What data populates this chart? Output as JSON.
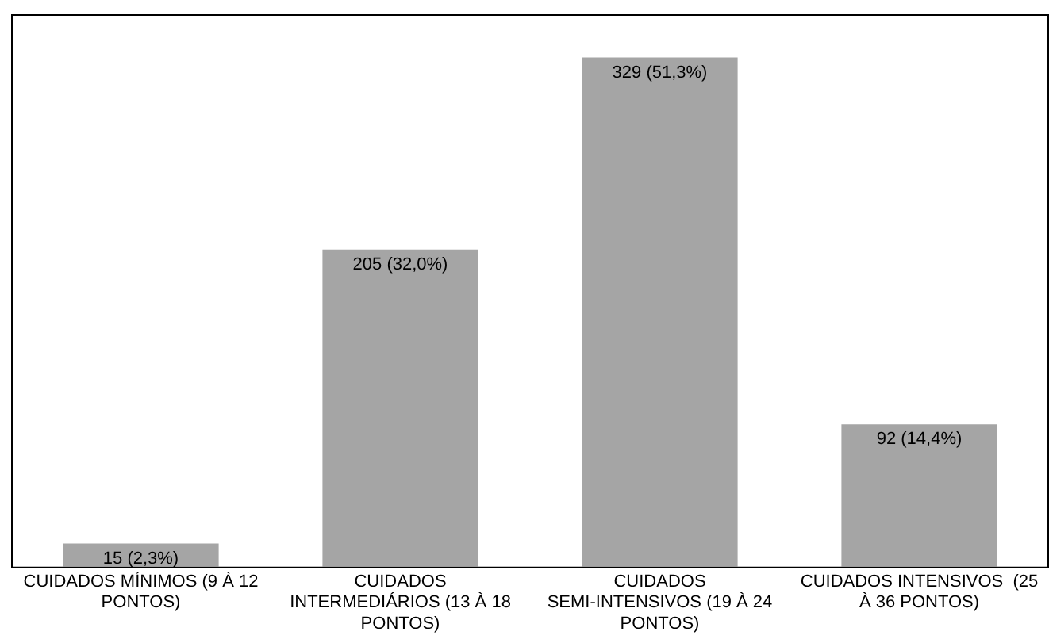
{
  "chart_data": {
    "type": "bar",
    "categories": [
      "CUIDADOS MÍNIMOS (9 À 12 PONTOS)",
      "CUIDADOS INTERMEDIÁRIOS (13 À 18 PONTOS)",
      "CUIDADOS SEMI-INTENSIVOS (19 À 24 PONTOS)",
      "CUIDADOS INTENSIVOS  (25 À 36 PONTOS)"
    ],
    "values": [
      15,
      205,
      329,
      92
    ],
    "value_labels": [
      "15 (2,3%)",
      "205 (32,0%)",
      "329 (51,3%)",
      "92 (14,4%)"
    ],
    "color": "#a5a5a5",
    "grid": false,
    "legend": false
  }
}
